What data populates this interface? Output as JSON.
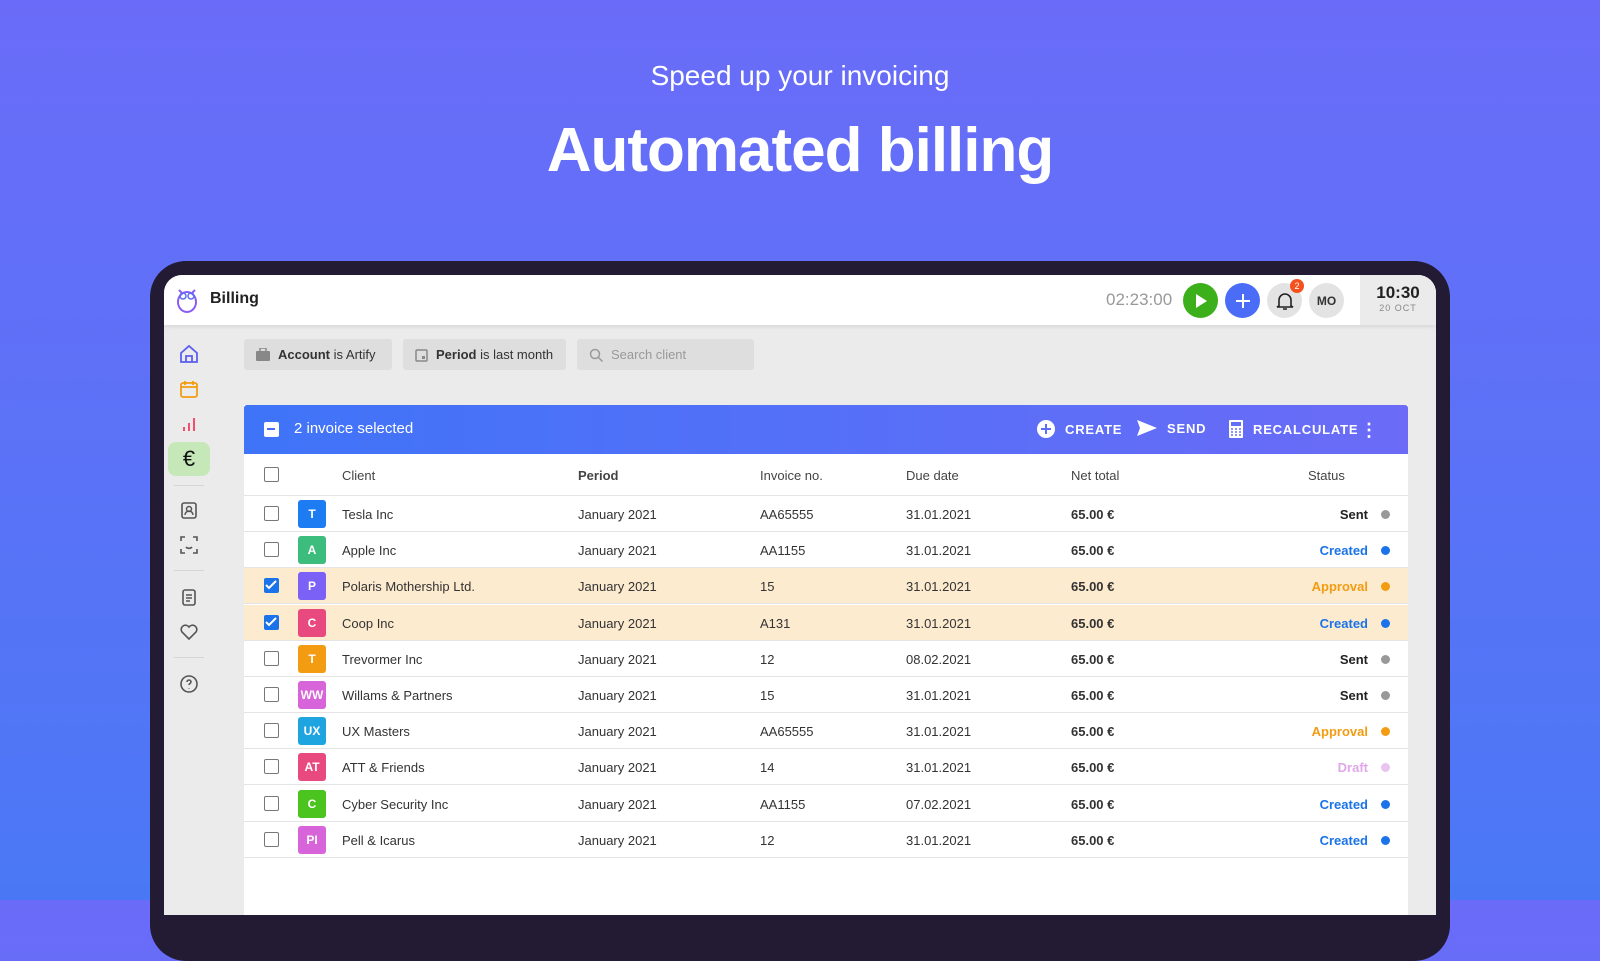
{
  "hero": {
    "subtitle": "Speed up your invoicing",
    "title": "Automated billing"
  },
  "topbar": {
    "title": "Billing",
    "timer": "02:23:00",
    "notifications": "2",
    "user_initials": "MO",
    "time": "10:30",
    "date": "20 OCT"
  },
  "filters": {
    "account_key": "Account",
    "account_val": " is Artify",
    "period_key": "Period",
    "period_val": " is last month",
    "search_placeholder": "Search client"
  },
  "bulk": {
    "selected_label": "2 invoice selected",
    "create": "CREATE",
    "send": "SEND",
    "recalculate": "RECALCULATE"
  },
  "table": {
    "headers": {
      "client": "Client",
      "period": "Period",
      "invoice": "Invoice no.",
      "due": "Due date",
      "net": "Net total",
      "status": "Status"
    },
    "rows": [
      {
        "initials": "T",
        "color": "#1e7cf2",
        "client": "Tesla Inc",
        "period": "January 2021",
        "invoice": "AA65555",
        "due": "31.01.2021",
        "net": "65.00 €",
        "status": "Sent",
        "status_color": "#222",
        "dot": "#999",
        "checked": false
      },
      {
        "initials": "A",
        "color": "#3dbd7d",
        "client": "Apple Inc",
        "period": "January 2021",
        "invoice": "AA1155",
        "due": "31.01.2021",
        "net": "65.00 €",
        "status": "Created",
        "status_color": "#1a73e8",
        "dot": "#1a73e8",
        "checked": false
      },
      {
        "initials": "P",
        "color": "#7b61f5",
        "client": "Polaris Mothership Ltd.",
        "period": "January 2021",
        "invoice": "15",
        "due": "31.01.2021",
        "net": "65.00 €",
        "status": "Approval",
        "status_color": "#f39c12",
        "dot": "#f39c12",
        "checked": true
      },
      {
        "initials": "C",
        "color": "#e84a7f",
        "client": "Coop Inc",
        "period": "January 2021",
        "invoice": "A131",
        "due": "31.01.2021",
        "net": "65.00 €",
        "status": "Created",
        "status_color": "#1a73e8",
        "dot": "#1a73e8",
        "checked": true
      },
      {
        "initials": "T",
        "color": "#f39c12",
        "client": "Trevormer Inc",
        "period": "January 2021",
        "invoice": "12",
        "due": "08.02.2021",
        "net": "65.00 €",
        "status": "Sent",
        "status_color": "#222",
        "dot": "#999",
        "checked": false
      },
      {
        "initials": "WW",
        "color": "#d764d8",
        "client": "Willams & Partners",
        "period": "January 2021",
        "invoice": "15",
        "due": "31.01.2021",
        "net": "65.00 €",
        "status": "Sent",
        "status_color": "#222",
        "dot": "#999",
        "checked": false
      },
      {
        "initials": "UX",
        "color": "#1ea5e0",
        "client": "UX Masters",
        "period": "January 2021",
        "invoice": "AA65555",
        "due": "31.01.2021",
        "net": "65.00 €",
        "status": "Approval",
        "status_color": "#f39c12",
        "dot": "#f39c12",
        "checked": false
      },
      {
        "initials": "AT",
        "color": "#e84a7f",
        "client": "ATT & Friends",
        "period": "January 2021",
        "invoice": "14",
        "due": "31.01.2021",
        "net": "65.00 €",
        "status": "Draft",
        "status_color": "#e0a8e8",
        "dot": "#e8c4ef",
        "checked": false
      },
      {
        "initials": "C",
        "color": "#4cc41f",
        "client": "Cyber Security Inc",
        "period": "January 2021",
        "invoice": "AA1155",
        "due": "07.02.2021",
        "net": "65.00 €",
        "status": "Created",
        "status_color": "#1a73e8",
        "dot": "#1a73e8",
        "checked": false
      },
      {
        "initials": "PI",
        "color": "#d764d8",
        "client": "Pell & Icarus",
        "period": "January 2021",
        "invoice": "12",
        "due": "31.01.2021",
        "net": "65.00 €",
        "status": "Created",
        "status_color": "#1a73e8",
        "dot": "#1a73e8",
        "checked": false
      }
    ]
  }
}
